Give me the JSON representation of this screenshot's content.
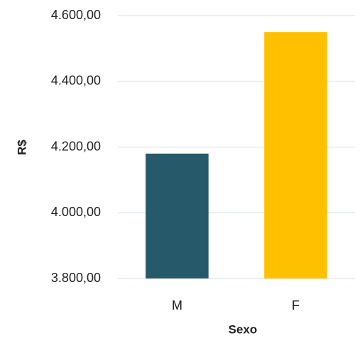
{
  "chart_data": {
    "type": "bar",
    "categories": [
      "M",
      "F"
    ],
    "values": [
      4180,
      4550
    ],
    "colors": [
      "#265a6a",
      "#ffc000"
    ],
    "ylim": [
      3800,
      4600
    ],
    "yticks": [
      {
        "value": 3800,
        "label": "3.800,00"
      },
      {
        "value": 4000,
        "label": "4.000,00"
      },
      {
        "value": 4200,
        "label": "4.200,00"
      },
      {
        "value": 4400,
        "label": "4.400,00"
      },
      {
        "value": 4600,
        "label": "4.600,00"
      }
    ],
    "xlabel": "Sexo",
    "ylabel": "R$",
    "grid": true
  }
}
